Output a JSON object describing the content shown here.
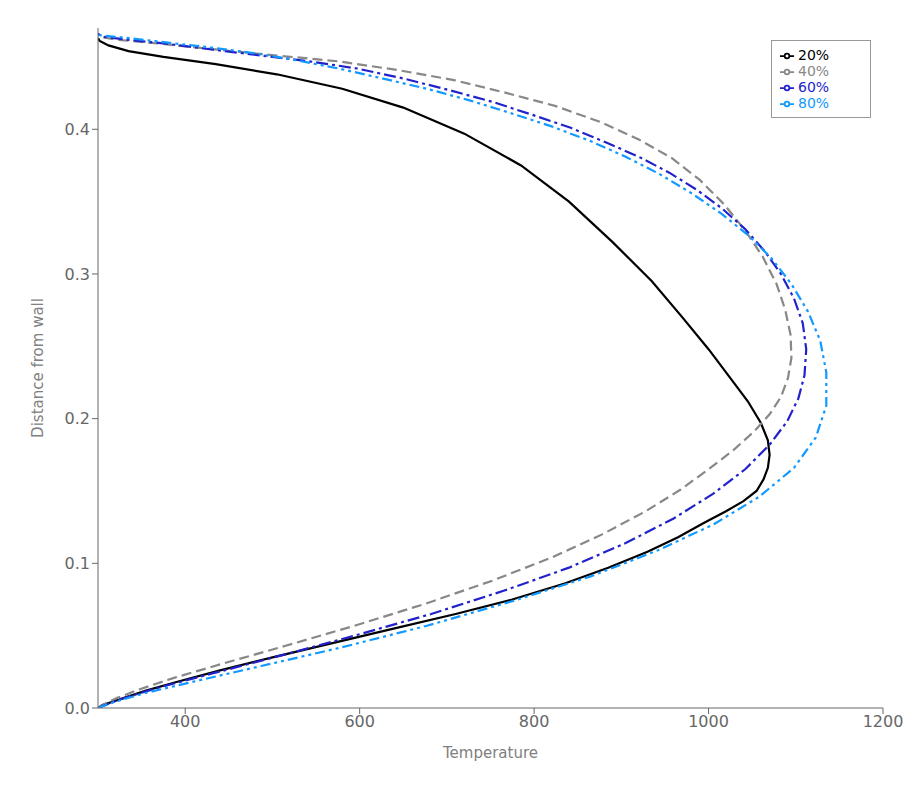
{
  "chart_data": {
    "type": "line",
    "title": "",
    "xlabel": "Temperature",
    "ylabel": "Distance from wall",
    "xlim": [
      300,
      1200
    ],
    "ylim": [
      0,
      0.47
    ],
    "xticks": [
      400,
      600,
      800,
      1000,
      1200
    ],
    "yticks": [
      {
        "value": 0,
        "label": "0.0"
      },
      0.1,
      0.2,
      0.3,
      0.4
    ],
    "legend": "upper right",
    "series": [
      {
        "name": "20%",
        "color": "black",
        "line_style": "solid",
        "marker": "none",
        "x": [
          300,
          305,
          315,
          330,
          355,
          390,
          440,
          500,
          570,
          640,
          710,
          775,
          835,
          885,
          930,
          965,
          995,
          1020,
          1040,
          1055,
          1063,
          1068,
          1070,
          1068,
          1060,
          1045,
          1025,
          1000,
          970,
          935,
          890,
          840,
          785,
          720,
          650,
          580,
          505,
          435,
          375,
          335,
          312,
          302,
          300
        ],
        "values": [
          0.0,
          0.002,
          0.004,
          0.007,
          0.012,
          0.018,
          0.026,
          0.035,
          0.045,
          0.055,
          0.065,
          0.075,
          0.086,
          0.097,
          0.108,
          0.118,
          0.128,
          0.136,
          0.143,
          0.15,
          0.158,
          0.166,
          0.175,
          0.185,
          0.197,
          0.212,
          0.228,
          0.248,
          0.27,
          0.295,
          0.322,
          0.35,
          0.375,
          0.397,
          0.415,
          0.428,
          0.438,
          0.445,
          0.45,
          0.454,
          0.458,
          0.461,
          0.463
        ]
      },
      {
        "name": "40%",
        "color": "#888888",
        "line_style": "dashed",
        "marker": "none",
        "x": [
          300,
          308,
          322,
          348,
          388,
          445,
          515,
          595,
          675,
          752,
          820,
          878,
          928,
          968,
          1000,
          1028,
          1052,
          1070,
          1083,
          1091,
          1095,
          1094,
          1088,
          1078,
          1062,
          1042,
          1018,
          990,
          958,
          920,
          876,
          825,
          769,
          708,
          643,
          575,
          505,
          437,
          374,
          320,
          302,
          300
        ],
        "values": [
          0.0,
          0.003,
          0.007,
          0.013,
          0.021,
          0.031,
          0.043,
          0.057,
          0.072,
          0.088,
          0.104,
          0.12,
          0.136,
          0.151,
          0.165,
          0.178,
          0.191,
          0.203,
          0.215,
          0.228,
          0.242,
          0.258,
          0.275,
          0.293,
          0.312,
          0.33,
          0.348,
          0.365,
          0.38,
          0.393,
          0.405,
          0.416,
          0.425,
          0.434,
          0.441,
          0.447,
          0.451,
          0.455,
          0.459,
          0.462,
          0.464,
          0.466
        ]
      },
      {
        "name": "60%",
        "color": "#2222cc",
        "line_style": "dashdot",
        "marker": "none",
        "x": [
          300,
          312,
          335,
          375,
          432,
          508,
          594,
          682,
          765,
          840,
          905,
          960,
          1005,
          1042,
          1070,
          1090,
          1103,
          1110,
          1112,
          1108,
          1098,
          1083,
          1064,
          1042,
          1016,
          987,
          955,
          920,
          882,
          842,
          798,
          752,
          703,
          651,
          597,
          542,
          487,
          432,
          380,
          333,
          305,
          300
        ],
        "values": [
          0.0,
          0.003,
          0.008,
          0.015,
          0.024,
          0.036,
          0.05,
          0.065,
          0.081,
          0.097,
          0.114,
          0.131,
          0.148,
          0.165,
          0.182,
          0.198,
          0.214,
          0.23,
          0.248,
          0.266,
          0.283,
          0.3,
          0.316,
          0.331,
          0.345,
          0.358,
          0.37,
          0.381,
          0.391,
          0.401,
          0.41,
          0.419,
          0.427,
          0.435,
          0.442,
          0.447,
          0.451,
          0.455,
          0.459,
          0.462,
          0.464,
          0.466
        ]
      },
      {
        "name": "80%",
        "color": "#1199ff",
        "line_style": "dashdotdot",
        "marker": "none",
        "x": [
          300,
          318,
          352,
          408,
          487,
          580,
          678,
          776,
          865,
          942,
          1006,
          1058,
          1098,
          1123,
          1135,
          1135,
          1128,
          1114,
          1095,
          1072,
          1045,
          1014,
          980,
          944,
          905,
          864,
          820,
          774,
          726,
          677,
          627,
          576,
          525,
          474,
          424,
          378,
          336,
          302,
          300
        ],
        "values": [
          0.0,
          0.004,
          0.01,
          0.018,
          0.029,
          0.042,
          0.057,
          0.074,
          0.091,
          0.109,
          0.127,
          0.146,
          0.166,
          0.187,
          0.209,
          0.232,
          0.254,
          0.274,
          0.293,
          0.311,
          0.327,
          0.342,
          0.356,
          0.369,
          0.381,
          0.392,
          0.402,
          0.411,
          0.42,
          0.428,
          0.435,
          0.442,
          0.448,
          0.453,
          0.457,
          0.46,
          0.463,
          0.465,
          0.466
        ]
      }
    ]
  }
}
